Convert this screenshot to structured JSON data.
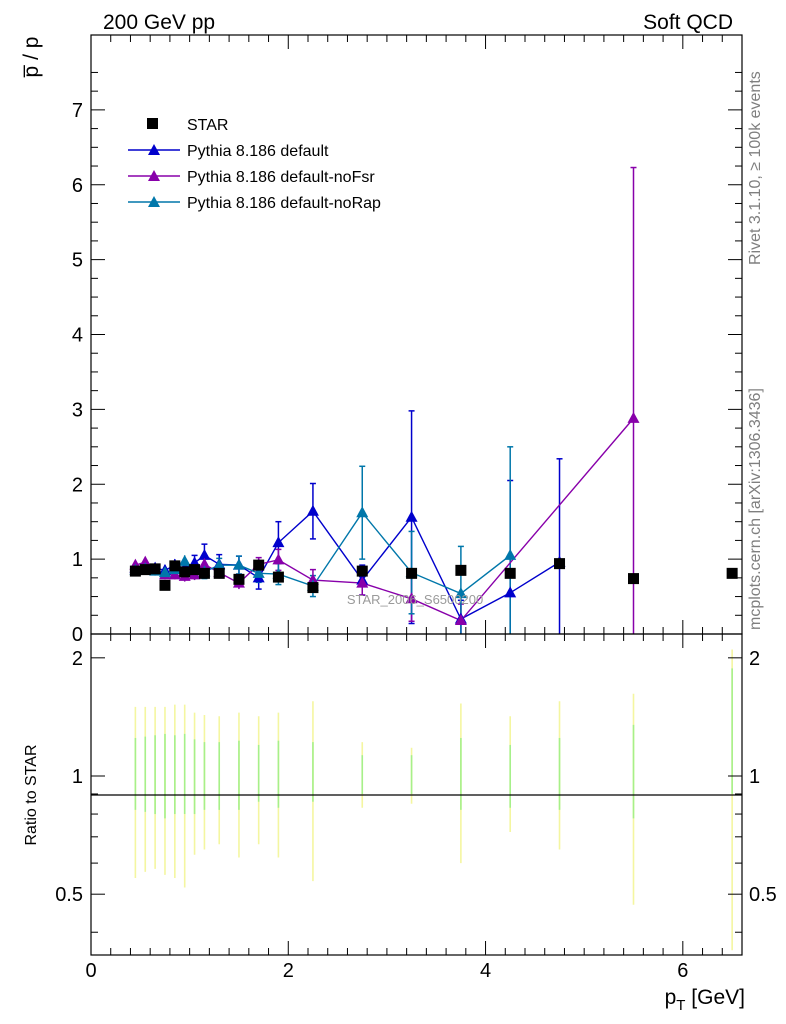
{
  "header": {
    "left": "200 GeV pp",
    "right": "Soft QCD"
  },
  "side_labels": {
    "rivet": "Rivet 3.1.10, ≥ 100k events",
    "mcplots": "mcplots.cern.ch [arXiv:1306.3436]"
  },
  "watermark": "STAR_2006_S6500200",
  "axes": {
    "main_ylabel": "p̅ / p",
    "ratio_ylabel": "Ratio to STAR",
    "xlabel": "p_T [GeV]",
    "x_ticks": [
      "0",
      "2",
      "4",
      "6"
    ],
    "main_y_ticks": [
      "0",
      "1",
      "2",
      "3",
      "4",
      "5",
      "6",
      "7"
    ],
    "ratio_y_ticks_left": [
      "0.5",
      "1",
      "2"
    ],
    "ratio_y_ticks_right": [
      "0.5",
      "1",
      "2"
    ]
  },
  "colors": {
    "star": "#000000",
    "default": "#0000cc",
    "nofsr": "#8800aa",
    "norap": "#0077aa",
    "band_inner": "#a6f08a",
    "band_outer": "#f4f6a0"
  },
  "chart_data": {
    "type": "line",
    "xlim": [
      0,
      6.6
    ],
    "ylim": [
      0,
      8
    ],
    "ratio_ylim": [
      0.35,
      2.3
    ],
    "ratio_scale": "log",
    "legend_position": "top-left",
    "series": [
      {
        "name": "STAR",
        "key": "star",
        "marker": "square",
        "x": [
          0.45,
          0.55,
          0.65,
          0.75,
          0.85,
          0.95,
          1.05,
          1.15,
          1.3,
          1.5,
          1.7,
          1.9,
          2.25,
          2.75,
          3.25,
          3.75,
          4.25,
          4.75,
          5.5,
          6.5
        ],
        "y": [
          0.84,
          0.86,
          0.87,
          0.65,
          0.91,
          0.83,
          0.86,
          0.81,
          0.81,
          0.73,
          0.92,
          0.76,
          0.62,
          0.84,
          0.81,
          0.85,
          0.81,
          0.94,
          0.74,
          0.81
        ],
        "err": [
          0.03,
          0.03,
          0.03,
          0.03,
          0.03,
          0.03,
          0.03,
          0.03,
          0.03,
          0.03,
          0.03,
          0.03,
          0.03,
          0.03,
          0.03,
          0.03,
          0.03,
          0.03,
          0.03,
          0.03
        ]
      },
      {
        "name": "Pythia 8.186 default",
        "key": "default",
        "marker": "triangle",
        "x": [
          0.45,
          0.55,
          0.65,
          0.75,
          0.85,
          0.95,
          1.05,
          1.15,
          1.3,
          1.5,
          1.7,
          1.9,
          2.25,
          2.75,
          3.25,
          3.75,
          4.25,
          4.75
        ],
        "y": [
          0.88,
          0.9,
          0.88,
          0.85,
          0.92,
          0.88,
          0.95,
          1.05,
          0.93,
          0.92,
          0.75,
          1.22,
          1.64,
          0.72,
          1.56,
          0.2,
          0.55,
          0.96
        ],
        "err": [
          0.06,
          0.06,
          0.07,
          0.07,
          0.08,
          0.09,
          0.1,
          0.15,
          0.13,
          0.12,
          0.15,
          0.28,
          0.37,
          0.2,
          1.42,
          0.25,
          1.5,
          1.38
        ]
      },
      {
        "name": "Pythia 8.186 default-noFsr",
        "key": "nofsr",
        "marker": "triangle",
        "x": [
          0.45,
          0.55,
          0.65,
          0.75,
          0.85,
          0.95,
          1.05,
          1.15,
          1.3,
          1.5,
          1.7,
          1.9,
          2.25,
          2.75,
          3.25,
          3.75,
          5.5
        ],
        "y": [
          0.92,
          0.96,
          0.86,
          0.79,
          0.79,
          0.77,
          0.79,
          0.93,
          0.82,
          0.68,
          0.93,
          0.99,
          0.72,
          0.68,
          0.47,
          0.18,
          2.88
        ],
        "err": [
          0.05,
          0.05,
          0.06,
          0.06,
          0.06,
          0.07,
          0.07,
          0.09,
          0.08,
          0.08,
          0.09,
          0.14,
          0.14,
          0.16,
          0.3,
          0.22,
          3.35
        ]
      },
      {
        "name": "Pythia 8.186 default-noRap",
        "key": "norap",
        "marker": "triangle",
        "x": [
          0.45,
          0.55,
          0.65,
          0.75,
          0.85,
          0.95,
          1.05,
          1.15,
          1.3,
          1.5,
          1.7,
          1.9,
          2.25,
          2.75,
          3.25,
          3.75,
          4.25
        ],
        "y": [
          0.85,
          0.87,
          0.84,
          0.82,
          0.86,
          0.97,
          0.85,
          0.83,
          0.92,
          0.92,
          0.81,
          0.8,
          0.64,
          1.62,
          0.82,
          0.54,
          1.05
        ],
        "err": [
          0.05,
          0.05,
          0.06,
          0.06,
          0.07,
          0.08,
          0.08,
          0.09,
          0.09,
          0.12,
          0.12,
          0.14,
          0.14,
          0.62,
          0.55,
          0.63,
          1.45
        ]
      }
    ],
    "ratio_bands": {
      "x": [
        0.45,
        0.55,
        0.65,
        0.75,
        0.85,
        0.95,
        1.05,
        1.15,
        1.3,
        1.5,
        1.7,
        1.9,
        2.25,
        2.75,
        3.25,
        3.75,
        4.25,
        4.75,
        5.5,
        6.5
      ],
      "inner": [
        [
          0.82,
          1.25
        ],
        [
          0.81,
          1.26
        ],
        [
          0.8,
          1.27
        ],
        [
          0.78,
          1.28
        ],
        [
          0.8,
          1.27
        ],
        [
          0.8,
          1.28
        ],
        [
          0.8,
          1.24
        ],
        [
          0.82,
          1.22
        ],
        [
          0.82,
          1.22
        ],
        [
          0.82,
          1.23
        ],
        [
          0.86,
          1.2
        ],
        [
          0.83,
          1.23
        ],
        [
          0.86,
          1.22
        ],
        [
          0.9,
          1.13
        ],
        [
          0.9,
          1.13
        ],
        [
          0.82,
          1.25
        ],
        [
          0.83,
          1.2
        ],
        [
          0.82,
          1.25
        ],
        [
          0.78,
          1.35
        ],
        [
          0.9,
          1.88
        ]
      ],
      "outer": [
        [
          0.55,
          1.5
        ],
        [
          0.57,
          1.5
        ],
        [
          0.58,
          1.5
        ],
        [
          0.56,
          1.5
        ],
        [
          0.55,
          1.52
        ],
        [
          0.52,
          1.52
        ],
        [
          0.63,
          1.45
        ],
        [
          0.65,
          1.43
        ],
        [
          0.67,
          1.42
        ],
        [
          0.62,
          1.45
        ],
        [
          0.67,
          1.42
        ],
        [
          0.62,
          1.45
        ],
        [
          0.54,
          1.55
        ],
        [
          0.83,
          1.22
        ],
        [
          0.85,
          1.18
        ],
        [
          0.6,
          1.53
        ],
        [
          0.72,
          1.42
        ],
        [
          0.65,
          1.55
        ],
        [
          0.47,
          1.62
        ],
        [
          0.36,
          2.1
        ]
      ]
    }
  }
}
